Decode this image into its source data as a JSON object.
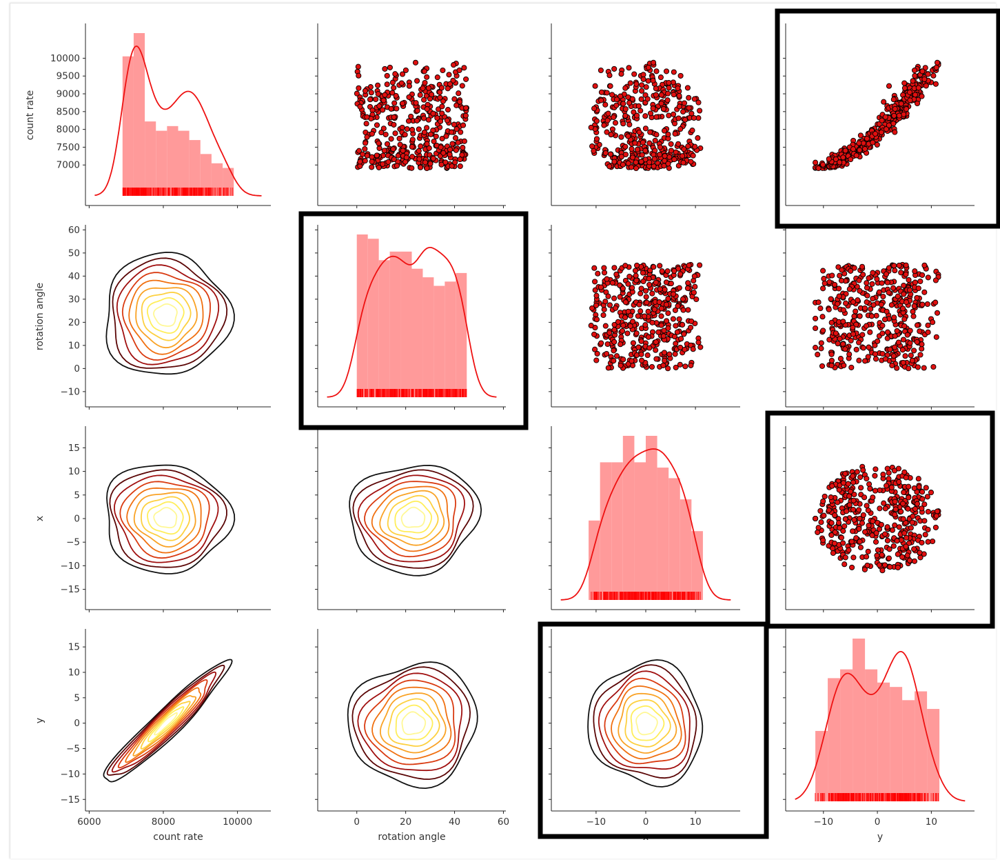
{
  "chart_data": {
    "type": "pairplot",
    "variables": [
      "count rate",
      "rotation angle",
      "x",
      "y"
    ],
    "variable_ranges": {
      "count rate": [
        6900,
        10000
      ],
      "rotation angle": [
        0,
        45
      ],
      "x": [
        -11.5,
        11.5
      ],
      "y": [
        -11.5,
        11.5
      ]
    },
    "axes": {
      "count rate": {
        "lim": [
          5900,
          10900
        ],
        "ticks": [
          7000,
          7500,
          8000,
          8500,
          9000,
          9500,
          10000
        ],
        "xticks": [
          6000,
          8000,
          10000
        ]
      },
      "rotation angle": {
        "lim": [
          -16,
          61
        ],
        "ticks": [
          -10,
          0,
          10,
          20,
          30,
          40,
          50,
          60
        ],
        "xticks": [
          0,
          20,
          40,
          60
        ]
      },
      "x": {
        "lim": [
          -19,
          19
        ],
        "ticks": [
          -15,
          -10,
          -5,
          0,
          5,
          10,
          15
        ],
        "xticks": [
          -10,
          0,
          10
        ]
      },
      "y": {
        "lim": [
          -17,
          18
        ],
        "ticks": [
          -15,
          -10,
          -5,
          0,
          5,
          10,
          15
        ],
        "xticks": [
          -10,
          0,
          10
        ]
      }
    },
    "diagonal": {
      "count rate": {
        "edges": [
          6900,
          7200,
          7500,
          7800,
          8100,
          8400,
          8700,
          9000,
          9300,
          9600,
          9900
        ],
        "counts": [
          30,
          35,
          16,
          14,
          15,
          14,
          12,
          9,
          7,
          6
        ]
      },
      "rotation angle": {
        "edges": [
          0,
          4.5,
          9,
          13.5,
          18,
          22.5,
          27,
          31.5,
          36,
          40.5,
          45
        ],
        "counts": [
          38,
          37,
          32,
          34,
          34,
          30,
          28,
          26,
          27,
          29
        ]
      },
      "x": {
        "edges": [
          -11.5,
          -9.2,
          -6.9,
          -4.6,
          -2.3,
          0,
          2.3,
          4.6,
          6.9,
          9.2,
          11.5
        ],
        "counts": [
          15,
          26,
          26,
          31,
          26,
          31,
          25,
          23,
          19,
          13
        ]
      },
      "y": {
        "edges": [
          -11.5,
          -9.2,
          -6.9,
          -4.6,
          -2.3,
          0,
          2.3,
          4.6,
          6.9,
          9.2,
          11.5
        ],
        "counts": [
          16,
          28,
          30,
          37,
          30,
          27,
          26,
          23,
          25,
          21
        ]
      }
    },
    "xlabels": [
      "count rate",
      "rotation angle",
      "x",
      "y"
    ],
    "ylabels": [
      "count rate",
      "rotation angle",
      "x",
      "y"
    ],
    "upper": "scatter",
    "lower": "kde",
    "diag": "histogram + kde + rug",
    "highlighted_panels": [
      [
        0,
        3
      ],
      [
        1,
        1
      ],
      [
        2,
        3
      ],
      [
        3,
        2
      ]
    ],
    "colors": {
      "hist": "#ff9a9a",
      "kde_line": "#ee1111",
      "rug": "#ff0000",
      "scatter_fill": "#e01010",
      "scatter_edge": "#000000",
      "contour_levels": [
        "#111111",
        "#5a0505",
        "#a00f0f",
        "#d93a10",
        "#f07010",
        "#f9a225",
        "#fdd040",
        "#ffee5a",
        "#fff895"
      ],
      "highlight_box": "#000000"
    },
    "grid": false,
    "legend": "none"
  }
}
